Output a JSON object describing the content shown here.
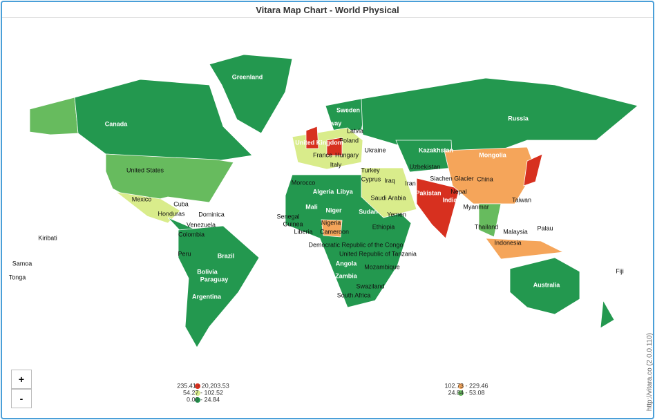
{
  "title": "Vitara Map Chart - World Physical",
  "zoom": [
    "+",
    "-"
  ],
  "credit": "http://vitara.co (2.0.0.110)",
  "legend": [
    {
      "label": "235.41 - 20,203.53",
      "color": "#d7301f"
    },
    {
      "label": "54.27 - 102.52",
      "color": "#d9ec8b"
    },
    {
      "label": "0.00 - 24.84",
      "color": "#23984f"
    },
    {
      "label": "102.73 - 229.46",
      "color": "#f5a55a"
    },
    {
      "label": "24.84 - 53.08",
      "color": "#67bb5e"
    }
  ],
  "countries": [
    "Greenland",
    "Canada",
    "Russia",
    "United States",
    "Mexico",
    "Cuba",
    "Honduras",
    "Dominica",
    "Venezuela",
    "Colombia",
    "Peru",
    "Brazil",
    "Bolivia",
    "Paraguay",
    "Argentina",
    "Kiribati",
    "Samoa",
    "Tonga",
    "Sweden",
    "Norway",
    "Latvia",
    "Poland",
    "United Kingdom",
    "France",
    "Hungary",
    "Ukraine",
    "Italy",
    "Turkey",
    "Cyprus",
    "Iraq",
    "Iran",
    "Morocco",
    "Algeria",
    "Libya",
    "Saudi Arabia",
    "Mali",
    "Niger",
    "Sudan",
    "Yemen",
    "Senegal",
    "Guinea",
    "Liberia",
    "Nigeria",
    "Cameroon",
    "Ethiopia",
    "Democratic Republic of the Congo",
    "United Republic of Tanzania",
    "Angola",
    "Mozambique",
    "Zambia",
    "Swaziland",
    "South Africa",
    "Kazakhstan",
    "Uzbekistan",
    "Pakistan",
    "Siachen Glacier",
    "Nepal",
    "India",
    "China",
    "Mongolia",
    "Taiwan",
    "Myanmar",
    "Thailand",
    "Malaysia",
    "Palau",
    "Indonesia",
    "Australia",
    "Fiji"
  ]
}
